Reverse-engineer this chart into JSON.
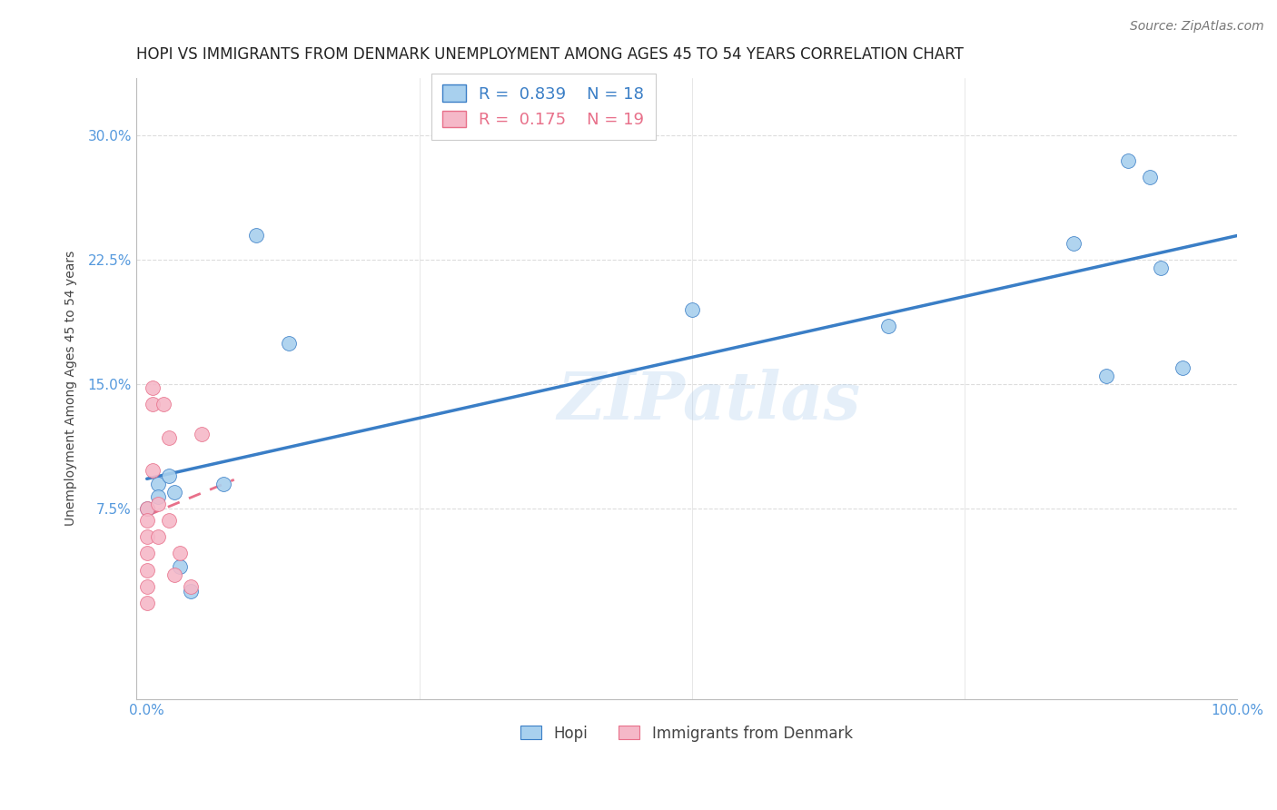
{
  "title": "HOPI VS IMMIGRANTS FROM DENMARK UNEMPLOYMENT AMONG AGES 45 TO 54 YEARS CORRELATION CHART",
  "source": "Source: ZipAtlas.com",
  "xlabel_ticks": [
    "0.0%",
    "100.0%"
  ],
  "ylabel_ticks": [
    "7.5%",
    "15.0%",
    "22.5%",
    "30.0%"
  ],
  "ylabel": "Unemployment Among Ages 45 to 54 years",
  "legend_labels": [
    "Hopi",
    "Immigrants from Denmark"
  ],
  "legend_r_n": [
    {
      "R": "0.839",
      "N": "18"
    },
    {
      "R": "0.175",
      "N": "19"
    }
  ],
  "hopi_color": "#A8D0EE",
  "denmark_color": "#F5B8C8",
  "hopi_line_color": "#3A7EC6",
  "denmark_line_color": "#E8708A",
  "watermark": "ZIPatlas",
  "hopi_x": [
    0.0,
    0.01,
    0.01,
    0.02,
    0.025,
    0.03,
    0.04,
    0.07,
    0.1,
    0.13,
    0.5,
    0.68,
    0.85,
    0.88,
    0.9,
    0.92,
    0.93,
    0.95
  ],
  "hopi_y": [
    0.075,
    0.09,
    0.082,
    0.095,
    0.085,
    0.04,
    0.025,
    0.09,
    0.24,
    0.175,
    0.195,
    0.185,
    0.235,
    0.155,
    0.285,
    0.275,
    0.22,
    0.16
  ],
  "denmark_x": [
    0.0,
    0.0,
    0.0,
    0.0,
    0.0,
    0.0,
    0.0,
    0.005,
    0.005,
    0.005,
    0.01,
    0.01,
    0.015,
    0.02,
    0.02,
    0.025,
    0.03,
    0.04,
    0.05
  ],
  "denmark_y": [
    0.075,
    0.068,
    0.058,
    0.048,
    0.038,
    0.028,
    0.018,
    0.148,
    0.138,
    0.098,
    0.078,
    0.058,
    0.138,
    0.118,
    0.068,
    0.035,
    0.048,
    0.028,
    0.12
  ],
  "xlim": [
    -0.01,
    1.0
  ],
  "ylim": [
    -0.04,
    0.335
  ],
  "ytick_vals": [
    0.075,
    0.15,
    0.225,
    0.3
  ],
  "xtick_vals": [
    0.0,
    1.0
  ],
  "title_fontsize": 12,
  "axis_label_fontsize": 10,
  "tick_fontsize": 11,
  "source_fontsize": 10,
  "watermark_fontsize": 52,
  "background_color": "#FFFFFF",
  "grid_color": "#DDDDDD",
  "tick_color": "#5599DD",
  "spine_color": "#BBBBBB"
}
